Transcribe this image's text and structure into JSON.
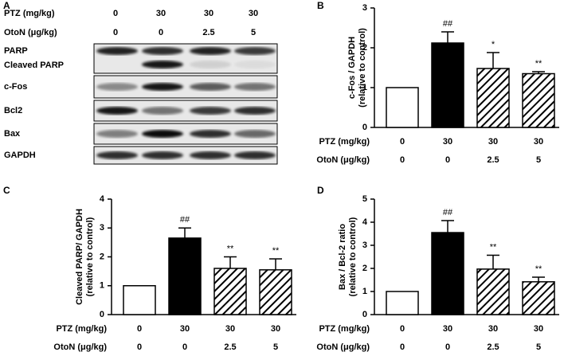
{
  "blot": {
    "panel": "A",
    "treatments": [
      {
        "name": "PTZ (mg/kg)",
        "values": [
          "0",
          "30",
          "30",
          "30"
        ]
      },
      {
        "name": "OtoN (μg/kg)",
        "values": [
          "0",
          "0",
          "2.5",
          "5"
        ]
      }
    ],
    "rows": [
      "PARP",
      "Cleaved PARP",
      "c-Fos",
      "Bcl2",
      "Bax",
      "GAPDH"
    ]
  },
  "chart_data": [
    {
      "type": "bar",
      "panel": "B",
      "ylabel": [
        "c-Fos / GAPDH",
        "(relative to control)"
      ],
      "treatments": [
        {
          "name": "PTZ (mg/kg)",
          "values": [
            "0",
            "30",
            "30",
            "30"
          ]
        },
        {
          "name": "OtoN (μg/kg)",
          "values": [
            "0",
            "0",
            "2.5",
            "5"
          ]
        }
      ],
      "values": [
        1,
        2.12,
        1.48,
        1.35
      ],
      "errors": [
        null,
        0.28,
        0.4,
        0.05
      ],
      "annotations": [
        null,
        "##",
        "*",
        "**"
      ],
      "fills": [
        "white",
        "black",
        "hatch",
        "hatch"
      ],
      "ylim": [
        0,
        3
      ],
      "yticks": [
        0,
        1,
        2,
        3
      ]
    },
    {
      "type": "bar",
      "panel": "C",
      "ylabel": [
        "Cleaved PARP/ GAPDH",
        "(relative to control)"
      ],
      "treatments": [
        {
          "name": "PTZ (mg/kg)",
          "values": [
            "0",
            "30",
            "30",
            "30"
          ]
        },
        {
          "name": "OtoN (μg/kg)",
          "values": [
            "0",
            "0",
            "2.5",
            "5"
          ]
        }
      ],
      "values": [
        1,
        2.65,
        1.6,
        1.55
      ],
      "errors": [
        null,
        0.35,
        0.4,
        0.38
      ],
      "annotations": [
        null,
        "##",
        "**",
        "**"
      ],
      "fills": [
        "white",
        "black",
        "hatch",
        "hatch"
      ],
      "ylim": [
        0,
        4
      ],
      "yticks": [
        0,
        1,
        2,
        3,
        4
      ]
    },
    {
      "type": "bar",
      "panel": "D",
      "ylabel": [
        "Bax / Bcl-2 ratio",
        "(relative to control)"
      ],
      "treatments": [
        {
          "name": "PTZ (mg/kg)",
          "values": [
            "0",
            "30",
            "30",
            "30"
          ]
        },
        {
          "name": "OtoN (μg/kg)",
          "values": [
            "0",
            "0",
            "2.5",
            "5"
          ]
        }
      ],
      "values": [
        1,
        3.55,
        1.97,
        1.42
      ],
      "errors": [
        null,
        0.52,
        0.6,
        0.2
      ],
      "annotations": [
        null,
        "##",
        "**",
        "**"
      ],
      "fills": [
        "white",
        "black",
        "hatch",
        "hatch"
      ],
      "ylim": [
        0,
        5
      ],
      "yticks": [
        0,
        1,
        2,
        3,
        4,
        5
      ]
    }
  ]
}
